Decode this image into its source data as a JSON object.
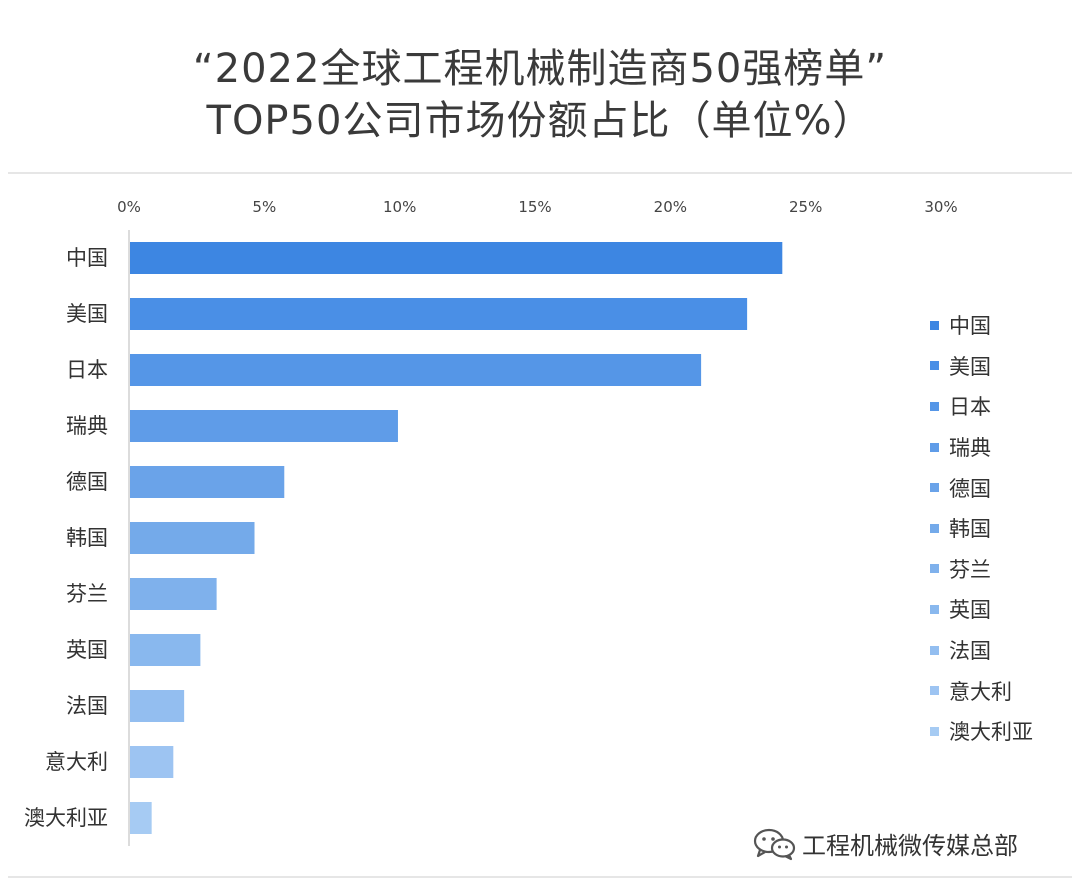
{
  "title": {
    "line1": "“2022全球工程机械制造商50强榜单”",
    "line2": "TOP50公司市场份额占比（单位%）"
  },
  "watermark": {
    "text": "工程机械微传媒总部",
    "icon": "wechat-icon"
  },
  "chart_data": {
    "type": "bar",
    "orientation": "horizontal",
    "title": "“2022全球工程机械制造商50强榜单” TOP50公司市场份额占比（单位%）",
    "xlabel": "",
    "ylabel": "",
    "xlim": [
      0,
      30
    ],
    "x_ticks": [
      0,
      5,
      10,
      15,
      20,
      25,
      30
    ],
    "x_tick_labels": [
      "0%",
      "5%",
      "10%",
      "15%",
      "20%",
      "25%",
      "30%"
    ],
    "axis_position": "top",
    "grid": false,
    "legend_position": "right",
    "categories": [
      "中国",
      "美国",
      "日本",
      "瑞典",
      "德国",
      "韩国",
      "芬兰",
      "英国",
      "法国",
      "意大利",
      "澳大利亚"
    ],
    "values": [
      24.1,
      22.8,
      21.1,
      9.9,
      5.7,
      4.6,
      3.2,
      2.6,
      2.0,
      1.6,
      0.8
    ],
    "colors": [
      "#3d86e2",
      "#4a8fe6",
      "#5596e7",
      "#5f9ce8",
      "#6aa3e9",
      "#74aaea",
      "#7fb1ec",
      "#89b8ee",
      "#93bef0",
      "#9dc4f2",
      "#a6cbf3"
    ],
    "legend": [
      "中国",
      "美国",
      "日本",
      "瑞典",
      "德国",
      "韩国",
      "芬兰",
      "英国",
      "法国",
      "意大利",
      "澳大利亚"
    ]
  }
}
